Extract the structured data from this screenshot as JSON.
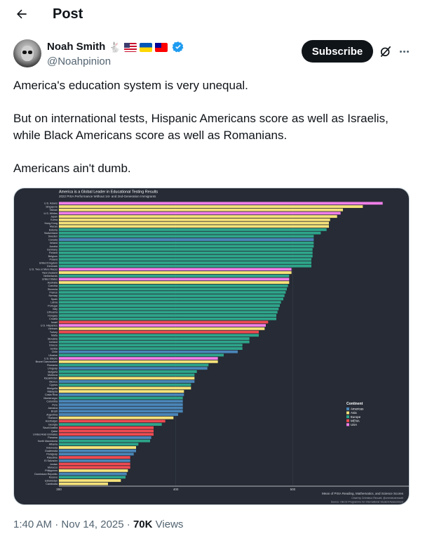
{
  "header": {
    "title": "Post"
  },
  "author": {
    "name": "Noah Smith",
    "handle": "@Noahpinion"
  },
  "actions": {
    "subscribe_label": "Subscribe"
  },
  "tweet": {
    "paragraphs": [
      "America's education system is very unequal.",
      "But on international tests, Hispanic Americans score as well as Israelis, while Black Americans score as well as Romanians.",
      "Americans ain't dumb."
    ]
  },
  "meta": {
    "time": "1:40 AM",
    "date": "Nov 14, 2025",
    "views_count": "70K",
    "views_label": "Views"
  },
  "colors": {
    "Americas": "#4a86b8",
    "Asia": "#f5e27a",
    "Europe": "#2ea58a",
    "MENA": "#ee4b51",
    "USA": "#f17fe8"
  },
  "chart_data": {
    "type": "bar",
    "orientation": "horizontal",
    "title": "America is a Global Leader in Educational Testing Results",
    "subtitle": "2022 PISA Performance Without 1st- and 2nd-Generation Immigrants",
    "xlim": [
      300,
      600
    ],
    "x_ticks": [
      300,
      400,
      500
    ],
    "legend": {
      "title": "Continent",
      "position": "right",
      "entries": [
        "Americas",
        "Asia",
        "Europe",
        "MENA",
        "USA"
      ]
    },
    "footer": [
      "Mean of PISA Reading, Mathematics, and Science Scores",
      "Chart by Crémieux Recueil, @cremieuxrecueil",
      "Source: OECD Programme for International Student Assessment"
    ],
    "categories": [
      "U.S. Asians",
      "Singapore",
      "Taiwan",
      "U.S. Whites",
      "Japan",
      "Korea",
      "Hong Kong",
      "Macao",
      "Estonia",
      "Switzerland",
      "Sweden",
      "Canada",
      "Ireland",
      "Austria",
      "Germany",
      "Finland",
      "Belgium",
      "Poland",
      "United Kingdom",
      "Denmark",
      "U.S. Two or More Races",
      "New Zealand",
      "Netherlands",
      "United States",
      "Australia",
      "Czechia",
      "Slovenia",
      "France",
      "Norway",
      "Spain",
      "Latvia",
      "Portugal",
      "Italy",
      "Lithuania",
      "Hungary",
      "Croatia",
      "Israel",
      "U.S. Hispanics",
      "Vietnam",
      "Turkey",
      "Malta",
      "Slovakia",
      "Iceland",
      "Greece",
      "Serbia",
      "Chile",
      "Ukraine",
      "U.S. Blacks",
      "Brunei Darussalam",
      "Romania",
      "Uruguay",
      "Bulgaria",
      "Moldova",
      "Kazakhstan",
      "Mexico",
      "Cyprus",
      "Mongolia",
      "Malaysia",
      "Costa Rica",
      "Montenegro",
      "Colombia",
      "Peru",
      "Jamaica",
      "Brazil",
      "Argentina",
      "Thailand",
      "Azerbaijan",
      "Georgia",
      "Saudi Arabia",
      "Qatar",
      "United Arab Emirates",
      "Panama",
      "North Macedonia",
      "Albania",
      "Indonesia",
      "Guatemala",
      "Paraguay",
      "Palestine",
      "El Salvador",
      "Jordan",
      "Morocco",
      "Philippines",
      "Dominican Republic",
      "Kosovo",
      "Uzbekistan",
      "Cambodia"
    ],
    "values": [
      577,
      560,
      543,
      541,
      538,
      532,
      531,
      531,
      529,
      524,
      518,
      518,
      518,
      518,
      517,
      517,
      517,
      516,
      516,
      516,
      499,
      499,
      497,
      497,
      497,
      496,
      495,
      494,
      493,
      492,
      490,
      489,
      488,
      487,
      486,
      486,
      479,
      477,
      476,
      471,
      471,
      463,
      463,
      457,
      457,
      453,
      441,
      436,
      436,
      428,
      427,
      418,
      416,
      416,
      416,
      413,
      413,
      407,
      407,
      406,
      406,
      406,
      406,
      406,
      402,
      398,
      391,
      388,
      381,
      381,
      381,
      379,
      378,
      368,
      366,
      366,
      364,
      361,
      361,
      361,
      361,
      359,
      358,
      357,
      353,
      342
    ],
    "groups": [
      "USA",
      "Asia",
      "Asia",
      "USA",
      "Asia",
      "Asia",
      "Asia",
      "Asia",
      "Europe",
      "Europe",
      "Europe",
      "Americas",
      "Europe",
      "Europe",
      "Europe",
      "Europe",
      "Europe",
      "Europe",
      "Europe",
      "Europe",
      "USA",
      "Asia",
      "Europe",
      "USA",
      "Asia",
      "Europe",
      "Europe",
      "Europe",
      "Europe",
      "Europe",
      "Europe",
      "Europe",
      "Europe",
      "Europe",
      "Europe",
      "Europe",
      "MENA",
      "USA",
      "Asia",
      "MENA",
      "Europe",
      "Europe",
      "Europe",
      "Europe",
      "Europe",
      "Americas",
      "Europe",
      "USA",
      "Asia",
      "Europe",
      "Americas",
      "Europe",
      "Europe",
      "Asia",
      "Americas",
      "Europe",
      "Asia",
      "Asia",
      "Americas",
      "Europe",
      "Americas",
      "Americas",
      "Americas",
      "Americas",
      "Americas",
      "Asia",
      "MENA",
      "Europe",
      "MENA",
      "MENA",
      "MENA",
      "Americas",
      "Europe",
      "Europe",
      "Asia",
      "Americas",
      "Americas",
      "MENA",
      "Americas",
      "MENA",
      "MENA",
      "Asia",
      "Americas",
      "Europe",
      "Asia",
      "Asia"
    ]
  }
}
